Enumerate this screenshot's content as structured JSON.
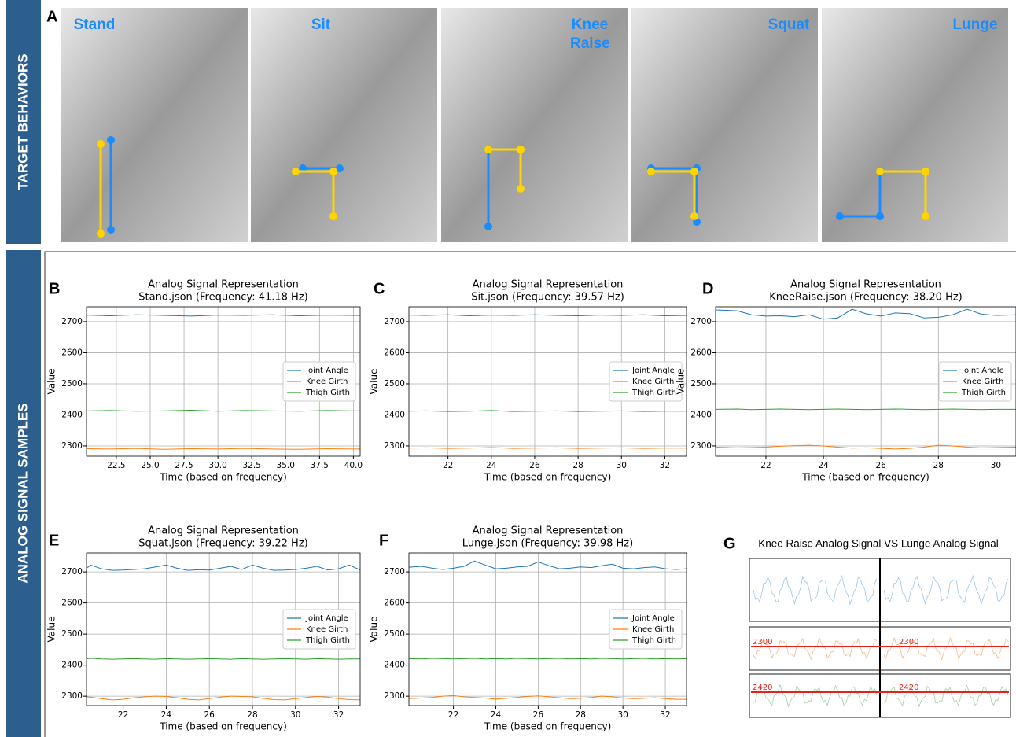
{
  "sections": {
    "top": "TARGET BEHAVIORS",
    "bottom": "ANALOG SIGNAL SAMPLES"
  },
  "panel_a": {
    "letter": "A",
    "labels": [
      "Stand",
      "Sit",
      "Knee Raise",
      "Squat",
      "Lunge"
    ]
  },
  "chart_data": [
    {
      "letter": "B",
      "type": "line",
      "title": "Analog Signal Representation",
      "subtitle": "Stand.json (Frequency: 41.18 Hz)",
      "xlabel": "Time (based on frequency)",
      "ylabel": "Value",
      "x": [
        20.3,
        22,
        24,
        26,
        28,
        30,
        32,
        34,
        36,
        38,
        40,
        40.5
      ],
      "series": [
        {
          "name": "Joint Angle",
          "color": "#1f77b4",
          "values": [
            2721,
            2719,
            2722,
            2720,
            2718,
            2721,
            2720,
            2722,
            2719,
            2721,
            2720,
            2720
          ]
        },
        {
          "name": "Knee Girth",
          "color": "#ff7f0e",
          "values": [
            2291,
            2290,
            2292,
            2289,
            2291,
            2290,
            2292,
            2290,
            2289,
            2291,
            2290,
            2290
          ]
        },
        {
          "name": "Thigh Girth",
          "color": "#2ca02c",
          "values": [
            2413,
            2414,
            2412,
            2413,
            2415,
            2412,
            2414,
            2413,
            2412,
            2414,
            2413,
            2413
          ]
        }
      ],
      "xlim": [
        20.3,
        40.5
      ],
      "ylim": [
        2267,
        2748
      ],
      "xticks": [
        22.5,
        {
          "value": 25,
          "label": "25.0"
        },
        27.5,
        {
          "value": 30,
          "label": "30.0"
        },
        32.5,
        {
          "value": 35,
          "label": "35.0"
        },
        37.5,
        {
          "value": 40,
          "label": "40.0"
        }
      ],
      "yticks": [
        2300,
        2400,
        2500,
        2600,
        2700
      ],
      "grid": true,
      "legend": "center right"
    },
    {
      "letter": "C",
      "type": "line",
      "title": "Analog Signal Representation",
      "subtitle": "Sit.json (Frequency: 39.57 Hz)",
      "xlabel": "Time (based on frequency)",
      "ylabel": "Value",
      "x": [
        20.2,
        21,
        22,
        23,
        24,
        25,
        26,
        27,
        28,
        29,
        30,
        31,
        32,
        33
      ],
      "series": [
        {
          "name": "Joint Angle",
          "color": "#1f77b4",
          "values": [
            2721,
            2720,
            2722,
            2719,
            2721,
            2720,
            2722,
            2720,
            2719,
            2721,
            2720,
            2722,
            2719,
            2720
          ]
        },
        {
          "name": "Knee Girth",
          "color": "#ff7f0e",
          "values": [
            2293,
            2294,
            2292,
            2293,
            2295,
            2292,
            2293,
            2294,
            2292,
            2293,
            2294,
            2292,
            2293,
            2293
          ]
        },
        {
          "name": "Thigh Girth",
          "color": "#2ca02c",
          "values": [
            2412,
            2413,
            2411,
            2412,
            2414,
            2411,
            2412,
            2413,
            2411,
            2412,
            2413,
            2411,
            2412,
            2412
          ]
        }
      ],
      "xlim": [
        20.2,
        33
      ],
      "ylim": [
        2267,
        2748
      ],
      "xticks": [
        22,
        24,
        26,
        28,
        30,
        32
      ],
      "yticks": [
        2300,
        2400,
        2500,
        2600,
        2700
      ],
      "grid": true,
      "legend": "center right"
    },
    {
      "letter": "D",
      "type": "line",
      "title": "Analog Signal Representation",
      "subtitle": "KneeRaise.json (Frequency: 38.20 Hz)",
      "xlabel": "Time (based on frequency)",
      "ylabel": "Value",
      "x": [
        20.25,
        21,
        21.5,
        22,
        22.5,
        23,
        23.5,
        24,
        24.5,
        25,
        25.5,
        26,
        26.5,
        27,
        27.5,
        28,
        28.5,
        29,
        29.5,
        30,
        30.7
      ],
      "series": [
        {
          "name": "Joint Angle",
          "color": "#1f77b4",
          "values": [
            2738,
            2735,
            2722,
            2718,
            2719,
            2716,
            2722,
            2708,
            2712,
            2740,
            2725,
            2718,
            2728,
            2726,
            2712,
            2714,
            2722,
            2740,
            2724,
            2720,
            2722
          ]
        },
        {
          "name": "Knee Girth",
          "color": "#ff7f0e",
          "values": [
            2296,
            2294,
            2295,
            2296,
            2299,
            2301,
            2302,
            2300,
            2296,
            2293,
            2294,
            2292,
            2290,
            2292,
            2296,
            2302,
            2300,
            2296,
            2294,
            2295,
            2296
          ]
        },
        {
          "name": "Thigh Girth",
          "color": "#2ca02c",
          "values": [
            2418,
            2419,
            2417,
            2418,
            2419,
            2418,
            2417,
            2418,
            2419,
            2418,
            2417,
            2418,
            2419,
            2418,
            2417,
            2418,
            2419,
            2418,
            2417,
            2418,
            2418
          ]
        }
      ],
      "xlim": [
        20.25,
        30.7
      ],
      "ylim": [
        2267,
        2748
      ],
      "xticks": [
        22,
        24,
        26,
        28,
        30
      ],
      "yticks": [
        2300,
        2400,
        2500,
        2600,
        2700
      ],
      "grid": true,
      "legend": "center right"
    },
    {
      "letter": "E",
      "type": "line",
      "title": "Analog Signal Representation",
      "subtitle": "Squat.json (Frequency: 39.22 Hz)",
      "xlabel": "Time (based on frequency)",
      "ylabel": "Value",
      "x": [
        20.3,
        20.5,
        21,
        21.5,
        22,
        22.5,
        23,
        23.5,
        24,
        24.5,
        25,
        25.5,
        26,
        26.5,
        27,
        27.5,
        28,
        28.5,
        29,
        29.5,
        30,
        30.5,
        31,
        31.5,
        32,
        32.5,
        33
      ],
      "series": [
        {
          "name": "Joint Angle",
          "color": "#1f77b4",
          "values": [
            2712,
            2722,
            2710,
            2705,
            2706,
            2708,
            2710,
            2716,
            2722,
            2712,
            2705,
            2707,
            2706,
            2712,
            2718,
            2708,
            2722,
            2712,
            2705,
            2706,
            2708,
            2712,
            2718,
            2706,
            2710,
            2722,
            2706
          ]
        },
        {
          "name": "Knee Girth",
          "color": "#ff7f0e",
          "values": [
            2298,
            2297,
            2292,
            2288,
            2290,
            2295,
            2298,
            2300,
            2299,
            2295,
            2290,
            2288,
            2292,
            2297,
            2300,
            2299,
            2298,
            2293,
            2289,
            2288,
            2292,
            2296,
            2299,
            2297,
            2292,
            2289,
            2288
          ]
        },
        {
          "name": "Thigh Girth",
          "color": "#2ca02c",
          "values": [
            2421,
            2422,
            2420,
            2419,
            2420,
            2421,
            2420,
            2419,
            2421,
            2420,
            2419,
            2420,
            2421,
            2420,
            2419,
            2421,
            2420,
            2419,
            2420,
            2421,
            2420,
            2419,
            2421,
            2420,
            2419,
            2420,
            2420
          ]
        }
      ],
      "xlim": [
        20.3,
        33
      ],
      "ylim": [
        2270,
        2761
      ],
      "xticks": [
        22,
        24,
        26,
        28,
        30,
        32
      ],
      "yticks": [
        2300,
        2400,
        2500,
        2600,
        2700
      ],
      "grid": true,
      "legend": "center right"
    },
    {
      "letter": "F",
      "type": "line",
      "title": "Analog Signal Representation",
      "subtitle": "Lunge.json (Frequency: 39.98 Hz)",
      "xlabel": "Time (based on frequency)",
      "ylabel": "Value",
      "x": [
        19.9,
        20.5,
        21,
        21.5,
        22,
        22.5,
        23,
        23.5,
        24,
        24.5,
        25,
        25.5,
        26,
        26.5,
        27,
        27.5,
        28,
        28.5,
        29,
        29.5,
        30,
        30.5,
        31,
        31.5,
        32,
        32.5,
        33
      ],
      "series": [
        {
          "name": "Joint Angle",
          "color": "#1f77b4",
          "values": [
            2715,
            2718,
            2712,
            2708,
            2712,
            2718,
            2735,
            2722,
            2710,
            2712,
            2716,
            2718,
            2732,
            2720,
            2710,
            2712,
            2716,
            2714,
            2720,
            2725,
            2712,
            2710,
            2714,
            2716,
            2710,
            2708,
            2710
          ]
        },
        {
          "name": "Knee Girth",
          "color": "#ff7f0e",
          "values": [
            2292,
            2294,
            2296,
            2300,
            2302,
            2298,
            2296,
            2294,
            2291,
            2293,
            2296,
            2299,
            2301,
            2298,
            2295,
            2292,
            2293,
            2296,
            2300,
            2298,
            2294,
            2292,
            2293,
            2295,
            2292,
            2290,
            2290
          ]
        },
        {
          "name": "Thigh Girth",
          "color": "#2ca02c",
          "values": [
            2421,
            2420,
            2422,
            2421,
            2420,
            2421,
            2422,
            2420,
            2421,
            2420,
            2422,
            2421,
            2420,
            2421,
            2422,
            2420,
            2421,
            2420,
            2422,
            2421,
            2420,
            2421,
            2422,
            2420,
            2421,
            2420,
            2421
          ]
        }
      ],
      "xlim": [
        19.9,
        33
      ],
      "ylim": [
        2270,
        2761
      ],
      "xticks": [
        22,
        24,
        26,
        28,
        30,
        32
      ],
      "yticks": [
        2300,
        2400,
        2500,
        2600,
        2700
      ],
      "grid": true,
      "legend": "center right"
    }
  ],
  "panel_g": {
    "letter": "G",
    "title": "Knee Raise Analog Signal VS Lunge Analog Signal",
    "annotations": [
      "2300",
      "2300",
      "2420",
      "2420"
    ]
  }
}
